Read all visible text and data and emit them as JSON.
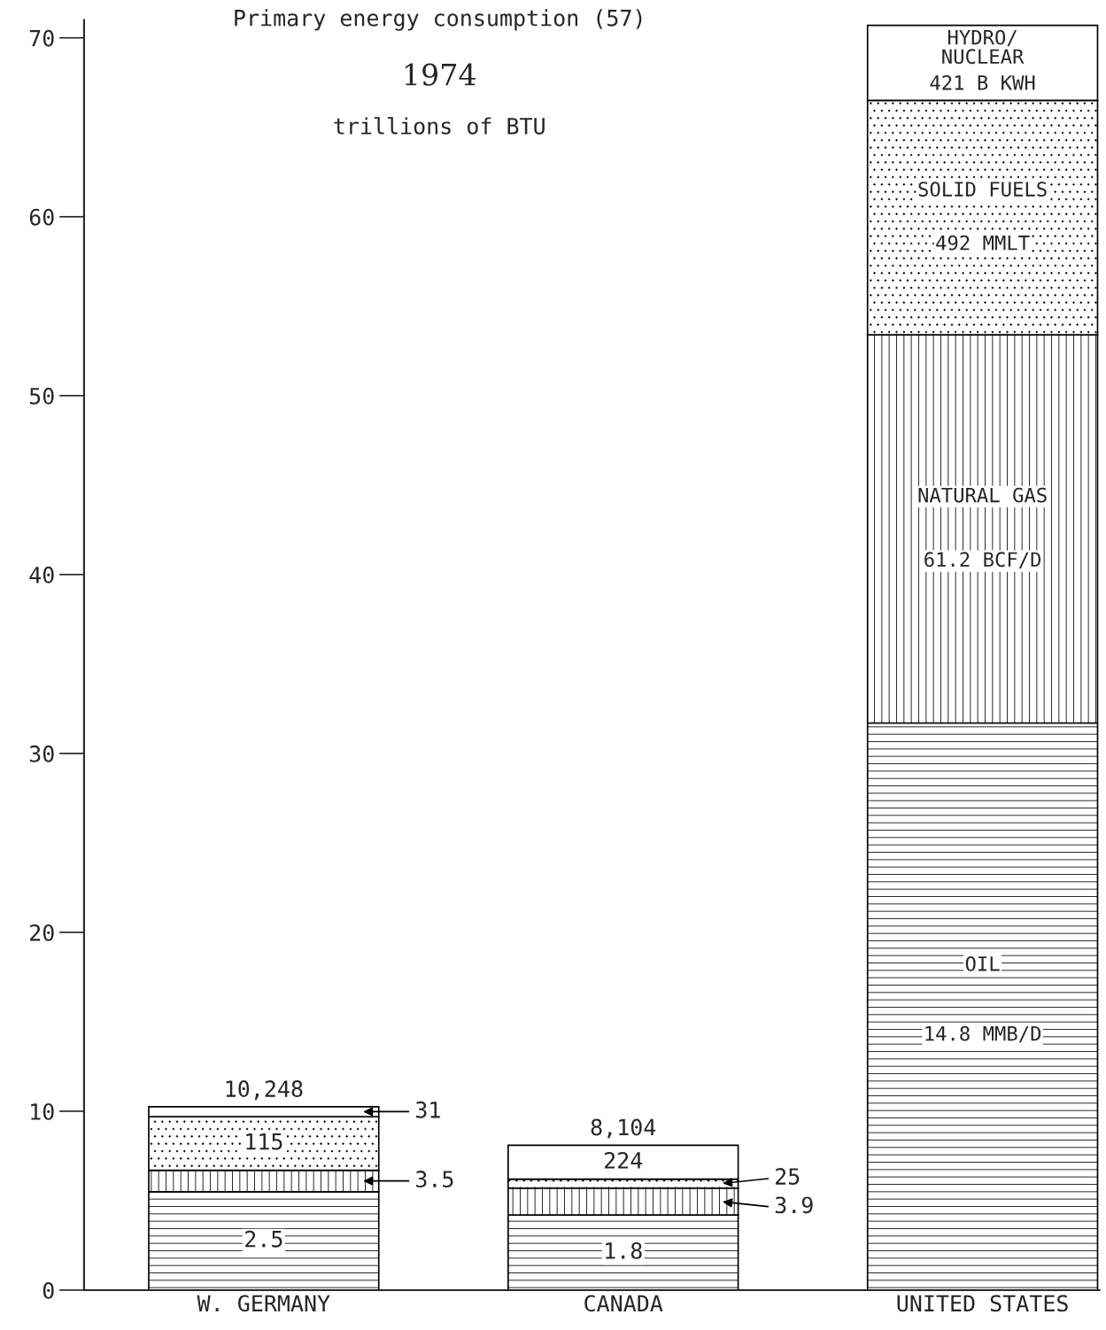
{
  "chart_data": {
    "type": "bar",
    "stacked": true,
    "title": "Primary energy consumption (57)",
    "subtitle": "1974",
    "annotations": [
      "trillions of BTU",
      "2.5",
      "3.5",
      "115",
      "31",
      "10,248",
      "1.8",
      "3.9",
      "25",
      "224",
      "8,104",
      "OIL",
      "14.8 MMB/D",
      "NATURAL GAS",
      "61.2 BCF/D",
      "SOLID FUELS",
      "492 MMLT",
      "HYDRO/\nNUCLEAR",
      "421 B KWH"
    ],
    "categories": [
      "W. GERMANY",
      "CANADA",
      "UNITED STATES"
    ],
    "series": [
      {
        "color": "#ffffff",
        "values": [
          5.5,
          4.2,
          31.7
        ]
      },
      {
        "color": "#ffffff",
        "values": [
          1.2,
          1.5,
          21.7
        ]
      },
      {
        "color": "#ffffff",
        "values": [
          3.0,
          0.5,
          13.1
        ]
      },
      {
        "color": "#ffffff",
        "values": [
          0.55,
          1.9,
          4.2
        ]
      }
    ],
    "ylim": [
      0,
      71
    ],
    "yticks": [
      0,
      10,
      20,
      30,
      40,
      50,
      60,
      70
    ],
    "grid": false,
    "legend": false
  }
}
